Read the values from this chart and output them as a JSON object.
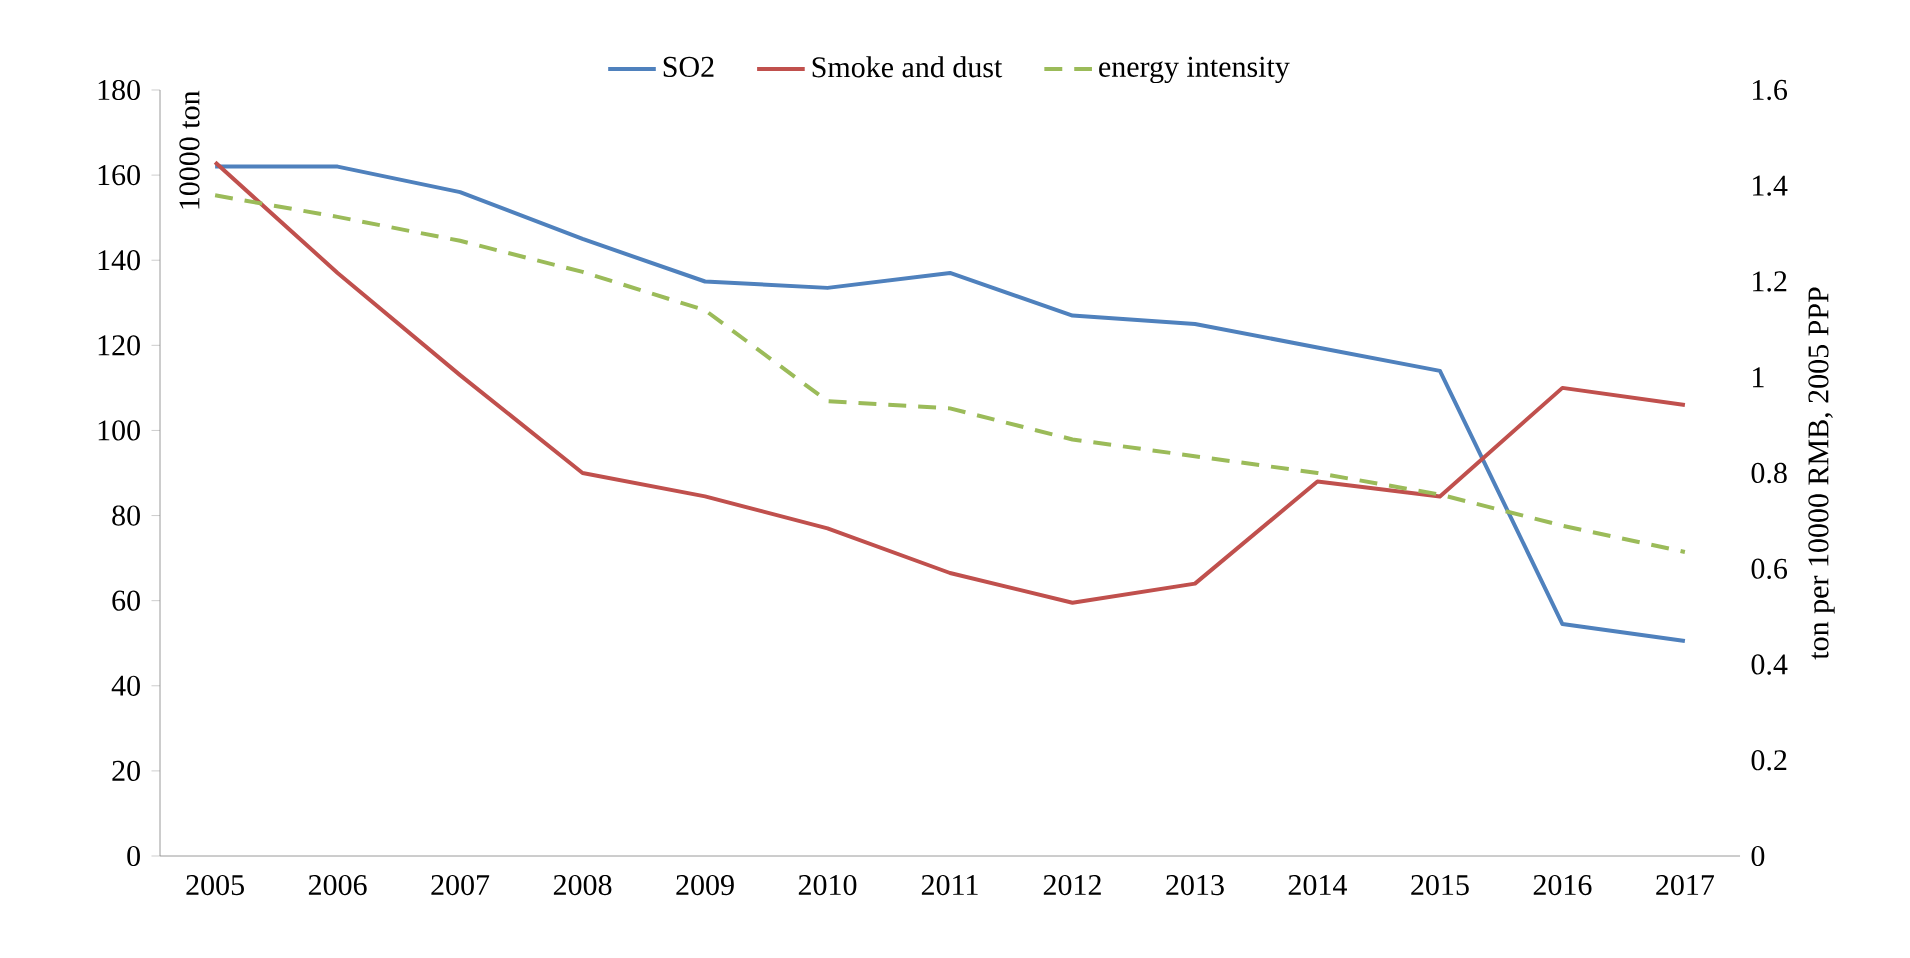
{
  "chart_data": {
    "type": "line",
    "ylabel": "10000 ton",
    "y2label": "ton per 10000 RMB, 2005 PPP",
    "categories": [
      "2005",
      "2006",
      "2007",
      "2008",
      "2009",
      "2010",
      "2011",
      "2012",
      "2013",
      "2014",
      "2015",
      "2016",
      "2017"
    ],
    "series": [
      {
        "name": "SO2",
        "color": "#4f81bd",
        "line_style": "solid",
        "values": [
          162,
          162,
          156,
          145,
          135,
          133.5,
          137,
          127,
          125,
          119.5,
          114,
          54.5,
          50.5
        ]
      },
      {
        "name": "Smoke and dust",
        "color": "#c0504d",
        "line_style": "solid",
        "values": [
          163,
          137,
          113,
          90,
          84.5,
          77,
          66.5,
          59.5,
          64,
          88,
          84.5,
          110,
          106
        ]
      },
      {
        "name": "energy intensity",
        "color": "#9bbb59",
        "line_style": "dashed",
        "axis": "y2",
        "values": [
          1.38,
          1.335,
          1.285,
          1.22,
          1.14,
          0.95,
          0.935,
          0.87,
          0.835,
          0.8,
          0.755,
          0.69,
          0.635
        ]
      }
    ],
    "ylim": [
      0,
      180
    ],
    "yticks": [
      0,
      20,
      40,
      60,
      80,
      100,
      120,
      140,
      160,
      180
    ],
    "y2lim": [
      0,
      1.6
    ],
    "y2ticks": [
      0,
      0.2,
      0.4,
      0.6,
      0.8,
      1,
      1.2,
      1.4,
      1.6
    ],
    "legend": "top",
    "grid": false,
    "marker": "none"
  }
}
